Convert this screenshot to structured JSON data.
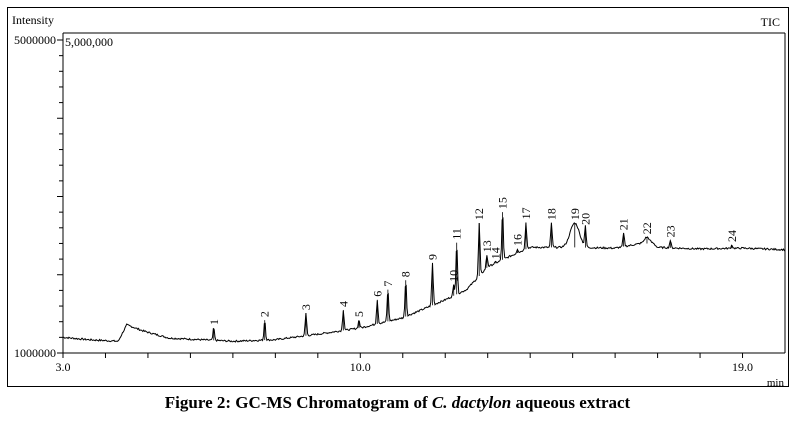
{
  "chart_data": {
    "type": "line",
    "title": "TIC",
    "ylabel": "Intensity",
    "xlabel": "min",
    "xlim": [
      3.0,
      20.0
    ],
    "ylim": [
      1000000,
      5000000
    ],
    "x_tick_labels": [
      "3.0",
      "10.0",
      "19.0"
    ],
    "x_tick_values": [
      3.0,
      10.0,
      19.0
    ],
    "y_tick_labels": [
      "5000000",
      "1000000"
    ],
    "y_tick_values": [
      5000000,
      1000000
    ],
    "scale_annotation": "5,000,000",
    "grid": false,
    "baseline": {
      "x": [
        3.0,
        3.6,
        4.3,
        4.5,
        4.9,
        5.5,
        7.0,
        8.0,
        9.0,
        10.0,
        11.0,
        12.0,
        12.5,
        13.0,
        13.5,
        14.0,
        15.0,
        16.0,
        16.6,
        16.9,
        17.0,
        18.0,
        19.0,
        20.0
      ],
      "y": [
        1200000,
        1170000,
        1150000,
        1360000,
        1280000,
        1190000,
        1150000,
        1170000,
        1240000,
        1320000,
        1450000,
        1680000,
        1810000,
        2100000,
        2230000,
        2350000,
        2350000,
        2340000,
        2400000,
        2400000,
        2350000,
        2330000,
        2340000,
        2320000
      ]
    },
    "peaks": [
      {
        "label": "1",
        "rt": 6.55,
        "intensity": 1320000
      },
      {
        "label": "2",
        "rt": 7.75,
        "intensity": 1420000
      },
      {
        "label": "3",
        "rt": 8.72,
        "intensity": 1510000
      },
      {
        "label": "4",
        "rt": 9.6,
        "intensity": 1550000
      },
      {
        "label": "5",
        "rt": 9.97,
        "intensity": 1420000
      },
      {
        "label": "6",
        "rt": 10.4,
        "intensity": 1680000
      },
      {
        "label": "7",
        "rt": 10.65,
        "intensity": 1810000
      },
      {
        "label": "8",
        "rt": 11.07,
        "intensity": 1930000
      },
      {
        "label": "9",
        "rt": 11.7,
        "intensity": 2150000
      },
      {
        "label": "10",
        "rt": 12.2,
        "intensity": 1870000
      },
      {
        "label": "11",
        "rt": 12.27,
        "intensity": 2410000
      },
      {
        "label": "12",
        "rt": 12.8,
        "intensity": 2660000
      },
      {
        "label": "13",
        "rt": 12.98,
        "intensity": 2250000
      },
      {
        "label": "14",
        "rt": 13.18,
        "intensity": 2160000
      },
      {
        "label": "15",
        "rt": 13.35,
        "intensity": 2800000
      },
      {
        "label": "16",
        "rt": 13.7,
        "intensity": 2330000
      },
      {
        "label": "17",
        "rt": 13.9,
        "intensity": 2670000
      },
      {
        "label": "18",
        "rt": 14.5,
        "intensity": 2660000
      },
      {
        "label": "19",
        "rt": 15.05,
        "intensity": 2660000
      },
      {
        "label": "20",
        "rt": 15.3,
        "intensity": 2600000
      },
      {
        "label": "21",
        "rt": 16.2,
        "intensity": 2530000
      },
      {
        "label": "22",
        "rt": 16.75,
        "intensity": 2480000
      },
      {
        "label": "23",
        "rt": 17.3,
        "intensity": 2440000
      },
      {
        "label": "24",
        "rt": 18.75,
        "intensity": 2380000
      }
    ]
  },
  "caption": {
    "prefix": "Figure 2: GC-MS Chromatogram of ",
    "species": "C. dactylon",
    "suffix": " aqueous extract"
  }
}
